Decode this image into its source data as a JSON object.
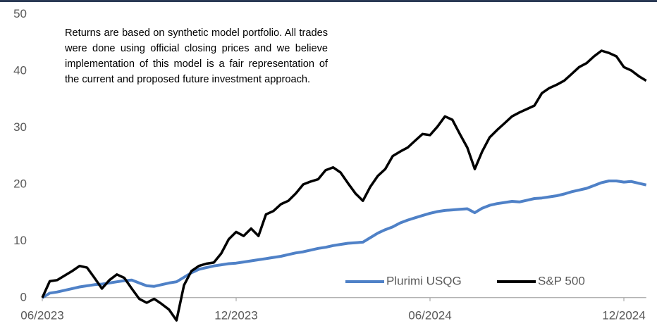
{
  "chart_data": {
    "type": "line",
    "annotation": "Returns are based on synthetic model portfolio. All trades were done using official closing prices and we believe implementation of this model is a fair representation of the current and proposed future investment approach.",
    "categories": [
      "06/2023",
      null,
      null,
      null,
      null,
      null,
      null,
      null,
      null,
      null,
      null,
      null,
      null,
      null,
      null,
      null,
      null,
      null,
      null,
      null,
      null,
      null,
      null,
      null,
      null,
      null,
      "12/2023",
      null,
      null,
      null,
      null,
      null,
      null,
      null,
      null,
      null,
      null,
      null,
      null,
      null,
      null,
      null,
      null,
      null,
      null,
      null,
      null,
      null,
      null,
      null,
      null,
      null,
      "06/2024",
      null,
      null,
      null,
      null,
      null,
      null,
      null,
      null,
      null,
      null,
      null,
      null,
      null,
      null,
      null,
      null,
      null,
      null,
      null,
      null,
      null,
      null,
      null,
      null,
      null,
      "12/2024",
      null,
      null,
      null
    ],
    "series": [
      {
        "name": "Plurimi USQG",
        "color": "#4f81c7",
        "values": [
          0,
          0.8,
          1.0,
          1.3,
          1.6,
          1.9,
          2.1,
          2.3,
          2.4,
          2.6,
          2.8,
          3.0,
          3.1,
          2.6,
          2.1,
          2.0,
          2.3,
          2.6,
          2.8,
          3.6,
          4.4,
          5.0,
          5.3,
          5.6,
          5.8,
          6.0,
          6.1,
          6.3,
          6.5,
          6.7,
          6.9,
          7.1,
          7.3,
          7.6,
          7.9,
          8.1,
          8.4,
          8.7,
          8.9,
          9.2,
          9.4,
          9.6,
          9.7,
          9.8,
          10.6,
          11.4,
          12.0,
          12.5,
          13.2,
          13.7,
          14.1,
          14.5,
          14.9,
          15.2,
          15.4,
          15.5,
          15.6,
          15.7,
          15.0,
          15.8,
          16.3,
          16.6,
          16.8,
          17.0,
          16.9,
          17.2,
          17.5,
          17.6,
          17.8,
          18.0,
          18.3,
          18.7,
          19.0,
          19.3,
          19.8,
          20.3,
          20.6,
          20.6,
          20.4,
          20.5,
          20.2,
          19.9
        ]
      },
      {
        "name": "S&P 500",
        "color": "#000000",
        "values": [
          0,
          2.9,
          3.1,
          3.9,
          4.7,
          5.6,
          5.3,
          3.5,
          1.6,
          3.1,
          4.1,
          3.5,
          1.6,
          -0.2,
          -0.9,
          -0.2,
          -1.1,
          -2.1,
          -4.0,
          2.2,
          4.7,
          5.6,
          6.0,
          6.2,
          7.8,
          10.3,
          11.6,
          10.9,
          12.2,
          10.9,
          14.7,
          15.3,
          16.5,
          17.1,
          18.4,
          20.0,
          20.5,
          20.9,
          22.5,
          23.0,
          22.1,
          20.2,
          18.4,
          17.1,
          19.6,
          21.5,
          22.7,
          25.0,
          25.8,
          26.5,
          27.7,
          28.9,
          28.7,
          30.2,
          32.0,
          31.4,
          28.9,
          26.5,
          22.7,
          25.8,
          28.3,
          29.6,
          30.8,
          32.0,
          32.7,
          33.3,
          33.9,
          36.1,
          37.0,
          37.6,
          38.3,
          39.5,
          40.7,
          41.4,
          42.6,
          43.6,
          43.2,
          42.6,
          40.7,
          40.1,
          39.1,
          38.3
        ]
      }
    ],
    "ylim": [
      -5,
      50
    ],
    "yticks": [
      0,
      10,
      20,
      30,
      40,
      50
    ],
    "grid": false,
    "legend": "bottom-right"
  }
}
